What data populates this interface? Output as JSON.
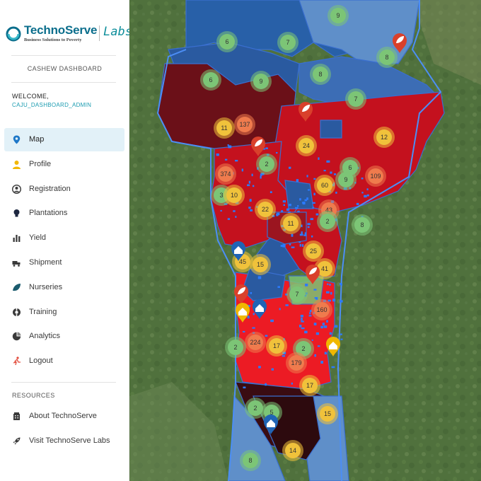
{
  "brand": {
    "name": "TechnoServe",
    "tagline": "Business Solutions to Poverty",
    "labs": "Labs"
  },
  "dashboard_title": "CASHEW DASHBOARD",
  "welcome": "WELCOME,",
  "username": "CAJU_DASHBOARD_ADMIN",
  "nav": [
    {
      "label": "Map",
      "icon": "map-pin-icon",
      "active": true
    },
    {
      "label": "Profile",
      "icon": "user-icon"
    },
    {
      "label": "Registration",
      "icon": "account-circle-icon"
    },
    {
      "label": "Plantations",
      "icon": "lightbulb-icon"
    },
    {
      "label": "Yield",
      "icon": "bar-chart-icon"
    },
    {
      "label": "Shipment",
      "icon": "shipment-icon"
    },
    {
      "label": "Nurseries",
      "icon": "leaf-icon"
    },
    {
      "label": "Training",
      "icon": "lifebuoy-icon"
    },
    {
      "label": "Analytics",
      "icon": "pie-chart-icon"
    },
    {
      "label": "Logout",
      "icon": "logout-run-icon"
    }
  ],
  "resources_title": "RESOURCES",
  "resources": [
    {
      "label": "About TechnoServe",
      "icon": "building-icon"
    },
    {
      "label": "Visit TechnoServe Labs",
      "icon": "rocket-icon"
    }
  ],
  "colors": {
    "accent": "#1a9bb0",
    "active_bg": "#e2f1f8",
    "cluster_green": "#7cc576",
    "cluster_yellow": "#f0c23b",
    "cluster_orange": "#ef7b4d",
    "region_dark_red": "#6b1018",
    "region_red": "#c4111e",
    "region_bright_red": "#ec1b24",
    "region_blue": "#2860a8",
    "region_light_blue": "#5f8fc9"
  },
  "map": {
    "clusters": [
      {
        "count": "9",
        "color": "green"
      },
      {
        "count": "6",
        "color": "green"
      },
      {
        "count": "7",
        "color": "green"
      },
      {
        "count": "8",
        "color": "green"
      },
      {
        "count": "6",
        "color": "green"
      },
      {
        "count": "9",
        "color": "green"
      },
      {
        "count": "8",
        "color": "green"
      },
      {
        "count": "7",
        "color": "green"
      },
      {
        "count": "11",
        "color": "yellow"
      },
      {
        "count": "137",
        "color": "orange"
      },
      {
        "count": "12",
        "color": "yellow"
      },
      {
        "count": "24",
        "color": "yellow"
      },
      {
        "count": "2",
        "color": "green"
      },
      {
        "count": "374",
        "color": "orange"
      },
      {
        "count": "6",
        "color": "green"
      },
      {
        "count": "109",
        "color": "orange"
      },
      {
        "count": "9",
        "color": "green"
      },
      {
        "count": "60",
        "color": "yellow"
      },
      {
        "count": "3",
        "color": "green"
      },
      {
        "count": "10",
        "color": "yellow"
      },
      {
        "count": "22",
        "color": "yellow"
      },
      {
        "count": "43",
        "color": "orange"
      },
      {
        "count": "2",
        "color": "green"
      },
      {
        "count": "11",
        "color": "yellow"
      },
      {
        "count": "8",
        "color": "green"
      },
      {
        "count": "25",
        "color": "yellow"
      },
      {
        "count": "45",
        "color": "yellow"
      },
      {
        "count": "15",
        "color": "yellow"
      },
      {
        "count": "41",
        "color": "yellow"
      },
      {
        "count": "7",
        "color": "green"
      },
      {
        "count": "160",
        "color": "orange"
      },
      {
        "count": "224",
        "color": "orange"
      },
      {
        "count": "17",
        "color": "yellow"
      },
      {
        "count": "2",
        "color": "green"
      },
      {
        "count": "2",
        "color": "green"
      },
      {
        "count": "179",
        "color": "orange"
      },
      {
        "count": "17",
        "color": "yellow"
      },
      {
        "count": "2",
        "color": "green"
      },
      {
        "count": "5",
        "color": "green"
      },
      {
        "count": "15",
        "color": "yellow"
      },
      {
        "count": "14",
        "color": "yellow"
      },
      {
        "count": "8",
        "color": "green"
      }
    ],
    "nursery_markers": 5,
    "warehouse_markers": 5
  }
}
